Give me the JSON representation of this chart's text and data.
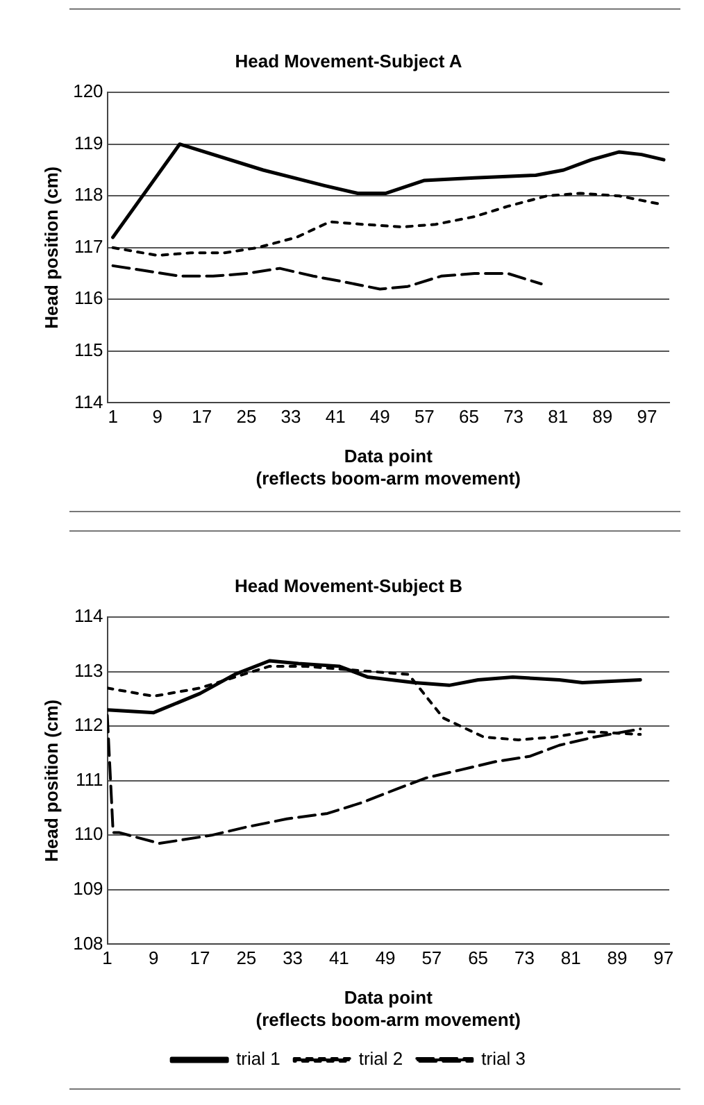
{
  "chart_data": [
    {
      "type": "line",
      "title": "Head Movement-Subject A",
      "xlabel": "Data point\n(reflects boom-arm movement)",
      "ylabel": "Head position (cm)",
      "xlim": [
        0,
        101
      ],
      "xticks": [
        1,
        9,
        17,
        25,
        33,
        41,
        49,
        57,
        65,
        73,
        81,
        89,
        97
      ],
      "ylim": [
        114,
        120
      ],
      "yticks": [
        114,
        115,
        116,
        117,
        118,
        119,
        120
      ],
      "grid": "y",
      "legend": false,
      "marker": "none",
      "series": [
        {
          "color": "#000000",
          "line_style": "solid",
          "x": [
            1,
            13,
            28,
            39,
            45,
            50,
            57,
            66,
            77,
            82,
            87,
            92,
            96,
            100
          ],
          "values": [
            117.2,
            119.0,
            118.5,
            118.2,
            118.05,
            118.05,
            118.3,
            118.35,
            118.4,
            118.5,
            118.7,
            118.85,
            118.8,
            118.7
          ]
        },
        {
          "color": "#000000",
          "line_style": "dotted",
          "x": [
            1,
            9,
            15,
            21,
            27,
            34,
            40,
            46,
            53,
            59,
            66,
            72,
            79,
            85,
            92,
            99
          ],
          "values": [
            117.0,
            116.85,
            116.9,
            116.9,
            117.0,
            117.2,
            117.5,
            117.45,
            117.4,
            117.45,
            117.6,
            117.8,
            118.0,
            118.05,
            118.0,
            117.85
          ]
        },
        {
          "color": "#000000",
          "line_style": "dashed",
          "x": [
            1,
            7,
            13,
            19,
            25,
            31,
            37,
            42,
            49,
            54,
            60,
            66,
            72,
            78
          ],
          "values": [
            116.65,
            116.55,
            116.45,
            116.45,
            116.5,
            116.6,
            116.45,
            116.35,
            116.2,
            116.25,
            116.45,
            116.5,
            116.5,
            116.3
          ]
        }
      ]
    },
    {
      "type": "line",
      "title": "Head Movement-Subject B",
      "xlabel": "Data point\n(reflects boom-arm movement)",
      "ylabel": "Head position (cm)",
      "xlim": [
        1,
        98
      ],
      "xticks": [
        1,
        9,
        17,
        25,
        33,
        41,
        49,
        57,
        65,
        73,
        81,
        89,
        97
      ],
      "ylim": [
        108,
        114
      ],
      "yticks": [
        108,
        109,
        110,
        111,
        112,
        113,
        114
      ],
      "grid": "y",
      "legend": "bottom",
      "marker": "none",
      "series": [
        {
          "name": "trial 1",
          "color": "#000000",
          "line_style": "solid",
          "x": [
            1,
            9,
            17,
            23,
            29,
            34,
            41,
            46,
            54,
            60,
            65,
            71,
            79,
            83,
            93
          ],
          "values": [
            112.3,
            112.25,
            112.6,
            112.95,
            113.2,
            113.15,
            113.1,
            112.9,
            112.8,
            112.75,
            112.85,
            112.9,
            112.85,
            112.8,
            112.85
          ]
        },
        {
          "name": "trial 2",
          "color": "#000000",
          "line_style": "dotted",
          "x": [
            1,
            9,
            17,
            23,
            29,
            35,
            41,
            47,
            53,
            59,
            66,
            72,
            78,
            84,
            93
          ],
          "values": [
            112.7,
            112.55,
            112.7,
            112.9,
            113.1,
            113.1,
            113.05,
            113.0,
            112.95,
            112.15,
            111.8,
            111.75,
            111.8,
            111.9,
            111.85
          ]
        },
        {
          "name": "trial 3",
          "color": "#000000",
          "line_style": "dashed",
          "x": [
            1,
            2,
            3,
            10,
            19,
            25,
            32,
            39,
            45,
            51,
            56,
            62,
            68,
            74,
            79,
            85,
            93
          ],
          "values": [
            112.2,
            110.05,
            110.05,
            109.85,
            110.0,
            110.15,
            110.3,
            110.4,
            110.6,
            110.85,
            111.05,
            111.2,
            111.35,
            111.45,
            111.65,
            111.8,
            111.95
          ]
        }
      ]
    }
  ]
}
